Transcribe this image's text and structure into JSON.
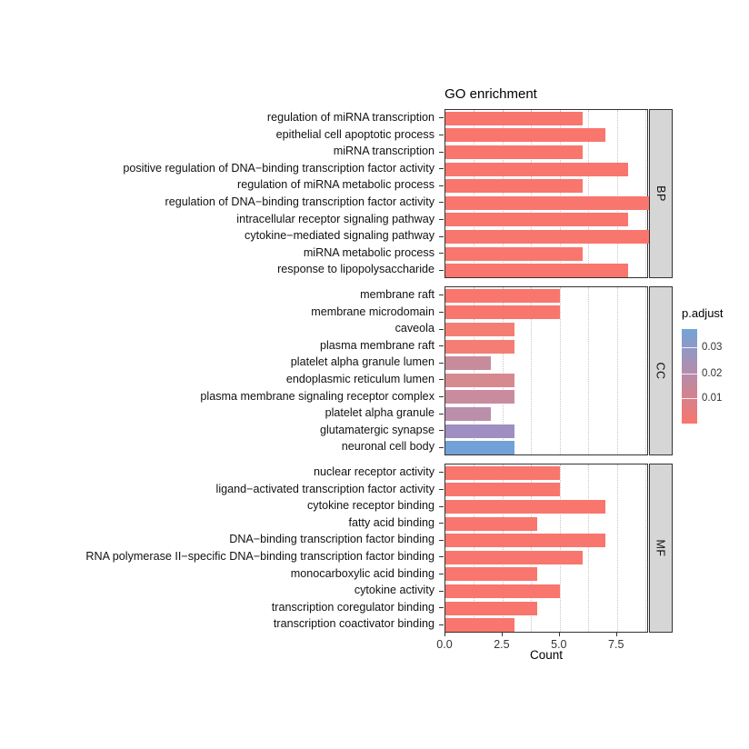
{
  "chart": {
    "title": "GO enrichment",
    "xlabel": "Count"
  },
  "chart_data": {
    "type": "bar",
    "orientation": "horizontal",
    "title": "GO enrichment",
    "xlabel": "Count",
    "xlim": [
      0,
      8.9
    ],
    "grid": "dotted-vertical",
    "x_ticks": [
      {
        "value": 0,
        "label": "0.0"
      },
      {
        "value": 2.5,
        "label": "2.5"
      },
      {
        "value": 5,
        "label": "5.0"
      },
      {
        "value": 7.5,
        "label": "7.5"
      }
    ],
    "legend": {
      "title": "p.adjust",
      "position": "right",
      "tick_labels": [
        "0.03",
        "0.02",
        "0.01"
      ],
      "gradient_top_color": "#74A3D8",
      "gradient_mid_color": "#B28DAD",
      "gradient_bottom_color": "#F8766D"
    },
    "facets": [
      {
        "label": "BP",
        "rows": [
          {
            "term": "regulation of miRNA transcription",
            "count": 6,
            "color": "#F8766D"
          },
          {
            "term": "epithelial cell apoptotic process",
            "count": 7,
            "color": "#F8766D"
          },
          {
            "term": "miRNA transcription",
            "count": 6,
            "color": "#F8766D"
          },
          {
            "term": "positive regulation of DNA−binding transcription factor activity",
            "count": 8,
            "color": "#F8766D"
          },
          {
            "term": "regulation of miRNA metabolic process",
            "count": 6,
            "color": "#F8766D"
          },
          {
            "term": "regulation of DNA−binding transcription factor activity",
            "count": 9,
            "color": "#F8766D"
          },
          {
            "term": "intracellular receptor signaling pathway",
            "count": 8,
            "color": "#F8766D"
          },
          {
            "term": "cytokine−mediated signaling pathway",
            "count": 9,
            "color": "#F8766D"
          },
          {
            "term": "miRNA metabolic process",
            "count": 6,
            "color": "#F8766D"
          },
          {
            "term": "response to lipopolysaccharide",
            "count": 8,
            "color": "#F8766D"
          }
        ]
      },
      {
        "label": "CC",
        "rows": [
          {
            "term": "membrane raft",
            "count": 5,
            "color": "#F8766D"
          },
          {
            "term": "membrane microdomain",
            "count": 5,
            "color": "#F8766D"
          },
          {
            "term": "caveola",
            "count": 3,
            "color": "#F47E74"
          },
          {
            "term": "plasma membrane raft",
            "count": 3,
            "color": "#F47E74"
          },
          {
            "term": "platelet alpha granule lumen",
            "count": 2,
            "color": "#C68C9C"
          },
          {
            "term": "endoplasmic reticulum lumen",
            "count": 3,
            "color": "#D68A90"
          },
          {
            "term": "plasma membrane signaling receptor complex",
            "count": 3,
            "color": "#C98C9E"
          },
          {
            "term": "platelet alpha granule",
            "count": 2,
            "color": "#BB8EAC"
          },
          {
            "term": "glutamatergic synapse",
            "count": 3,
            "color": "#9F8EC1"
          },
          {
            "term": "neuronal cell body",
            "count": 3,
            "color": "#72A1D8"
          }
        ]
      },
      {
        "label": "MF",
        "rows": [
          {
            "term": "nuclear receptor activity",
            "count": 5,
            "color": "#F8766D"
          },
          {
            "term": "ligand−activated transcription factor activity",
            "count": 5,
            "color": "#F8766D"
          },
          {
            "term": "cytokine receptor binding",
            "count": 7,
            "color": "#F8766D"
          },
          {
            "term": "fatty acid binding",
            "count": 4,
            "color": "#F8766D"
          },
          {
            "term": "DNA−binding transcription factor binding",
            "count": 7,
            "color": "#F8766D"
          },
          {
            "term": "RNA polymerase II−specific DNA−binding transcription factor binding",
            "count": 6,
            "color": "#F8766D"
          },
          {
            "term": "monocarboxylic acid binding",
            "count": 4,
            "color": "#F8766D"
          },
          {
            "term": "cytokine activity",
            "count": 5,
            "color": "#F8766D"
          },
          {
            "term": "transcription coregulator binding",
            "count": 4,
            "color": "#F8766D"
          },
          {
            "term": "transcription coactivator binding",
            "count": 3,
            "color": "#F8766D"
          }
        ]
      }
    ]
  }
}
